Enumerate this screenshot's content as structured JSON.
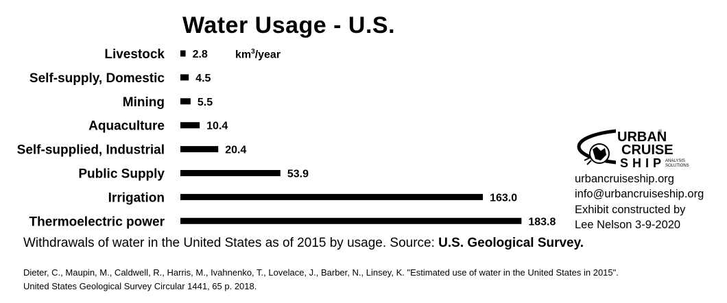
{
  "chart_data": {
    "type": "bar",
    "orientation": "horizontal",
    "title": "Water Usage - U.S.",
    "unit_label": {
      "base": "km",
      "sup": "3",
      "rest": "/year"
    },
    "categories": [
      "Livestock",
      "Self-supply, Domestic",
      "Mining",
      "Aquaculture",
      "Self-supplied, Industrial",
      "Public Supply",
      "Irrigation",
      "Thermoelectric power"
    ],
    "values": [
      2.8,
      4.5,
      5.5,
      10.4,
      20.4,
      53.9,
      163.0,
      183.8
    ],
    "value_labels": [
      "2.8",
      "4.5",
      "5.5",
      "10.4",
      "20.4",
      "53.9",
      "163.0",
      "183.8"
    ],
    "bar_color": "#000000",
    "grid": false,
    "legend": "none"
  },
  "caption": {
    "text": "Withdrawals of water in the United States as of 2015 by usage. Source: ",
    "bold": "U.S. Geological Survey."
  },
  "citation": {
    "line1": "Dieter, C., Maupin, M., Caldwell, R., Harris, M., Ivahnenko, T., Lovelace, J., Barber, N., Linsey, K. \"Estimated use of water in the United States in 2015\".",
    "line2": "United States Geological Survey Circular 1441, 65 p. 2018."
  },
  "logo": {
    "icon": "urban-cruise-ship-logo-icon",
    "line1": "URBAN",
    "line2": "CRUISE",
    "line3": "SHIP",
    "tag1": "ANALYSIS",
    "tag2": "SOLUTIONS",
    "reg": "®"
  },
  "contact": {
    "website": "urbancruiseship.org",
    "email": "info@urbancruiseship.org",
    "line3": "Exhibit constructed by",
    "line4": "Lee Nelson 3-9-2020"
  }
}
